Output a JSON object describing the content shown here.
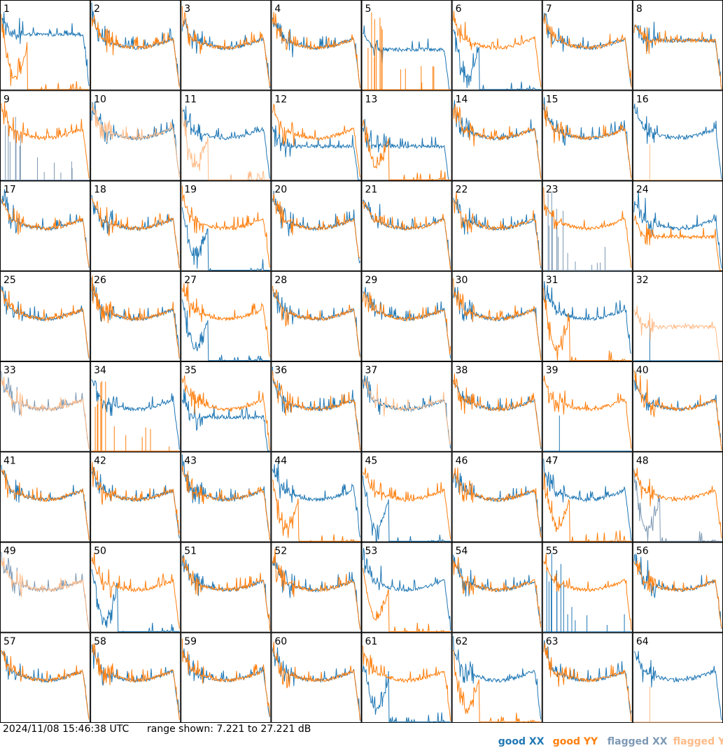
{
  "footer": {
    "timestamp": "2024/11/08 15:46:38 UTC",
    "range_text": "range shown: 7.221 to 27.221 dB"
  },
  "legend": [
    {
      "label_prefix": "good",
      "label_pol": "XX",
      "color": "#1f77b4"
    },
    {
      "label_prefix": "good",
      "label_pol": "YY",
      "color": "#ff7f0e"
    },
    {
      "label_prefix": "flagged",
      "label_pol": "XX",
      "color": "#7d99b4"
    },
    {
      "label_prefix": "flagged",
      "label_pol": "YY",
      "color": "#ffbb88"
    }
  ],
  "chart_data": {
    "type": "line",
    "y_range_db": [
      7.221,
      27.221
    ],
    "grid": {
      "rows": 8,
      "cols": 8
    },
    "panels": [
      {
        "label": "1",
        "xx": "good",
        "yy": "good",
        "xx_shape": "high",
        "yy_shape": "sag"
      },
      {
        "label": "2",
        "xx": "good",
        "yy": "good",
        "xx_shape": "normal",
        "yy_shape": "normal"
      },
      {
        "label": "3",
        "xx": "good",
        "yy": "good",
        "xx_shape": "normal",
        "yy_shape": "normal"
      },
      {
        "label": "4",
        "xx": "good",
        "yy": "good",
        "xx_shape": "normal",
        "yy_shape": "normal"
      },
      {
        "label": "5",
        "xx": "good",
        "yy": "good",
        "xx_shape": "dip",
        "yy_shape": "spikes"
      },
      {
        "label": "6",
        "xx": "good",
        "yy": "good",
        "xx_shape": "sag",
        "yy_shape": "normal"
      },
      {
        "label": "7",
        "xx": "good",
        "yy": "good",
        "xx_shape": "normal",
        "yy_shape": "normal"
      },
      {
        "label": "8",
        "xx": "good",
        "yy": "good",
        "xx_shape": "flat",
        "yy_shape": "flat"
      },
      {
        "label": "9",
        "xx": "flagged",
        "yy": "good",
        "xx_shape": "spikes",
        "yy_shape": "normal"
      },
      {
        "label": "10",
        "xx": "good",
        "yy": "flagged",
        "xx_shape": "normal",
        "yy_shape": "normal"
      },
      {
        "label": "11",
        "xx": "good",
        "yy": "flagged",
        "xx_shape": "normal",
        "yy_shape": "sag"
      },
      {
        "label": "12",
        "xx": "good",
        "yy": "good",
        "xx_shape": "low",
        "yy_shape": "normal"
      },
      {
        "label": "13",
        "xx": "good",
        "yy": "good",
        "xx_shape": "low",
        "yy_shape": "sag"
      },
      {
        "label": "14",
        "xx": "good",
        "yy": "good",
        "xx_shape": "normal",
        "yy_shape": "normal"
      },
      {
        "label": "15",
        "xx": "good",
        "yy": "good",
        "xx_shape": "normal",
        "yy_shape": "normal"
      },
      {
        "label": "16",
        "xx": "good",
        "yy": "flagged",
        "xx_shape": "normal",
        "yy_shape": "spike1"
      },
      {
        "label": "17",
        "xx": "good",
        "yy": "good",
        "xx_shape": "normal",
        "yy_shape": "normal"
      },
      {
        "label": "18",
        "xx": "good",
        "yy": "good",
        "xx_shape": "normal",
        "yy_shape": "normal"
      },
      {
        "label": "19",
        "xx": "good",
        "yy": "good",
        "xx_shape": "sag",
        "yy_shape": "normal"
      },
      {
        "label": "20",
        "xx": "good",
        "yy": "good",
        "xx_shape": "normal",
        "yy_shape": "normal"
      },
      {
        "label": "21",
        "xx": "good",
        "yy": "good",
        "xx_shape": "normal",
        "yy_shape": "normal"
      },
      {
        "label": "22",
        "xx": "good",
        "yy": "good",
        "xx_shape": "normal",
        "yy_shape": "normal"
      },
      {
        "label": "23",
        "xx": "flagged",
        "yy": "good",
        "xx_shape": "spikes",
        "yy_shape": "normal"
      },
      {
        "label": "24",
        "xx": "good",
        "yy": "good",
        "xx_shape": "normal",
        "yy_shape": "low"
      },
      {
        "label": "25",
        "xx": "good",
        "yy": "good",
        "xx_shape": "normal",
        "yy_shape": "normal"
      },
      {
        "label": "26",
        "xx": "good",
        "yy": "good",
        "xx_shape": "normal",
        "yy_shape": "normal"
      },
      {
        "label": "27",
        "xx": "good",
        "yy": "good",
        "xx_shape": "sag",
        "yy_shape": "normal"
      },
      {
        "label": "28",
        "xx": "good",
        "yy": "good",
        "xx_shape": "normal",
        "yy_shape": "normal"
      },
      {
        "label": "29",
        "xx": "good",
        "yy": "good",
        "xx_shape": "normal",
        "yy_shape": "normal"
      },
      {
        "label": "30",
        "xx": "good",
        "yy": "good",
        "xx_shape": "normal",
        "yy_shape": "normal"
      },
      {
        "label": "31",
        "xx": "good",
        "yy": "good",
        "xx_shape": "normal",
        "yy_shape": "sag"
      },
      {
        "label": "32",
        "xx": "good",
        "yy": "flagged",
        "xx_shape": "spike1",
        "yy_shape": "low"
      },
      {
        "label": "33",
        "xx": "flagged",
        "yy": "flagged",
        "xx_shape": "normal",
        "yy_shape": "normal"
      },
      {
        "label": "34",
        "xx": "good",
        "yy": "good",
        "xx_shape": "normal",
        "yy_shape": "spikes"
      },
      {
        "label": "35",
        "xx": "good",
        "yy": "good",
        "xx_shape": "low",
        "yy_shape": "normal"
      },
      {
        "label": "36",
        "xx": "good",
        "yy": "good",
        "xx_shape": "normal",
        "yy_shape": "normal"
      },
      {
        "label": "37",
        "xx": "good",
        "yy": "flagged",
        "xx_shape": "normal",
        "yy_shape": "normal"
      },
      {
        "label": "38",
        "xx": "good",
        "yy": "good",
        "xx_shape": "normal",
        "yy_shape": "normal"
      },
      {
        "label": "39",
        "xx": "good",
        "yy": "good",
        "xx_shape": "spike1",
        "yy_shape": "normal"
      },
      {
        "label": "40",
        "xx": "good",
        "yy": "good",
        "xx_shape": "normal",
        "yy_shape": "normal"
      },
      {
        "label": "41",
        "xx": "good",
        "yy": "good",
        "xx_shape": "normal",
        "yy_shape": "normal"
      },
      {
        "label": "42",
        "xx": "good",
        "yy": "good",
        "xx_shape": "normal",
        "yy_shape": "normal"
      },
      {
        "label": "43",
        "xx": "good",
        "yy": "good",
        "xx_shape": "normal",
        "yy_shape": "normal"
      },
      {
        "label": "44",
        "xx": "good",
        "yy": "good",
        "xx_shape": "normal",
        "yy_shape": "sag"
      },
      {
        "label": "45",
        "xx": "good",
        "yy": "good",
        "xx_shape": "sag",
        "yy_shape": "normal"
      },
      {
        "label": "46",
        "xx": "good",
        "yy": "good",
        "xx_shape": "normal",
        "yy_shape": "normal"
      },
      {
        "label": "47",
        "xx": "good",
        "yy": "good",
        "xx_shape": "normal",
        "yy_shape": "sag"
      },
      {
        "label": "48",
        "xx": "flagged",
        "yy": "good",
        "xx_shape": "sag",
        "yy_shape": "normal"
      },
      {
        "label": "49",
        "xx": "flagged",
        "yy": "flagged",
        "xx_shape": "normal",
        "yy_shape": "normal"
      },
      {
        "label": "50",
        "xx": "good",
        "yy": "good",
        "xx_shape": "sag",
        "yy_shape": "normal"
      },
      {
        "label": "51",
        "xx": "good",
        "yy": "good",
        "xx_shape": "normal",
        "yy_shape": "normal"
      },
      {
        "label": "52",
        "xx": "good",
        "yy": "good",
        "xx_shape": "normal",
        "yy_shape": "normal"
      },
      {
        "label": "53",
        "xx": "good",
        "yy": "good",
        "xx_shape": "normal",
        "yy_shape": "sag"
      },
      {
        "label": "54",
        "xx": "good",
        "yy": "good",
        "xx_shape": "normal",
        "yy_shape": "normal"
      },
      {
        "label": "55",
        "xx": "good",
        "yy": "good",
        "xx_shape": "spikes",
        "yy_shape": "normal"
      },
      {
        "label": "56",
        "xx": "good",
        "yy": "good",
        "xx_shape": "normal",
        "yy_shape": "normal"
      },
      {
        "label": "57",
        "xx": "good",
        "yy": "good",
        "xx_shape": "normal",
        "yy_shape": "normal"
      },
      {
        "label": "58",
        "xx": "good",
        "yy": "good",
        "xx_shape": "normal",
        "yy_shape": "normal"
      },
      {
        "label": "59",
        "xx": "good",
        "yy": "good",
        "xx_shape": "normal",
        "yy_shape": "normal"
      },
      {
        "label": "60",
        "xx": "good",
        "yy": "good",
        "xx_shape": "normal",
        "yy_shape": "normal"
      },
      {
        "label": "61",
        "xx": "good",
        "yy": "good",
        "xx_shape": "sag",
        "yy_shape": "normal"
      },
      {
        "label": "62",
        "xx": "good",
        "yy": "good",
        "xx_shape": "normal",
        "yy_shape": "sag"
      },
      {
        "label": "63",
        "xx": "good",
        "yy": "good",
        "xx_shape": "normal",
        "yy_shape": "normal"
      },
      {
        "label": "64",
        "xx": "good",
        "yy": "flagged",
        "xx_shape": "normal",
        "yy_shape": "spike1"
      }
    ]
  }
}
